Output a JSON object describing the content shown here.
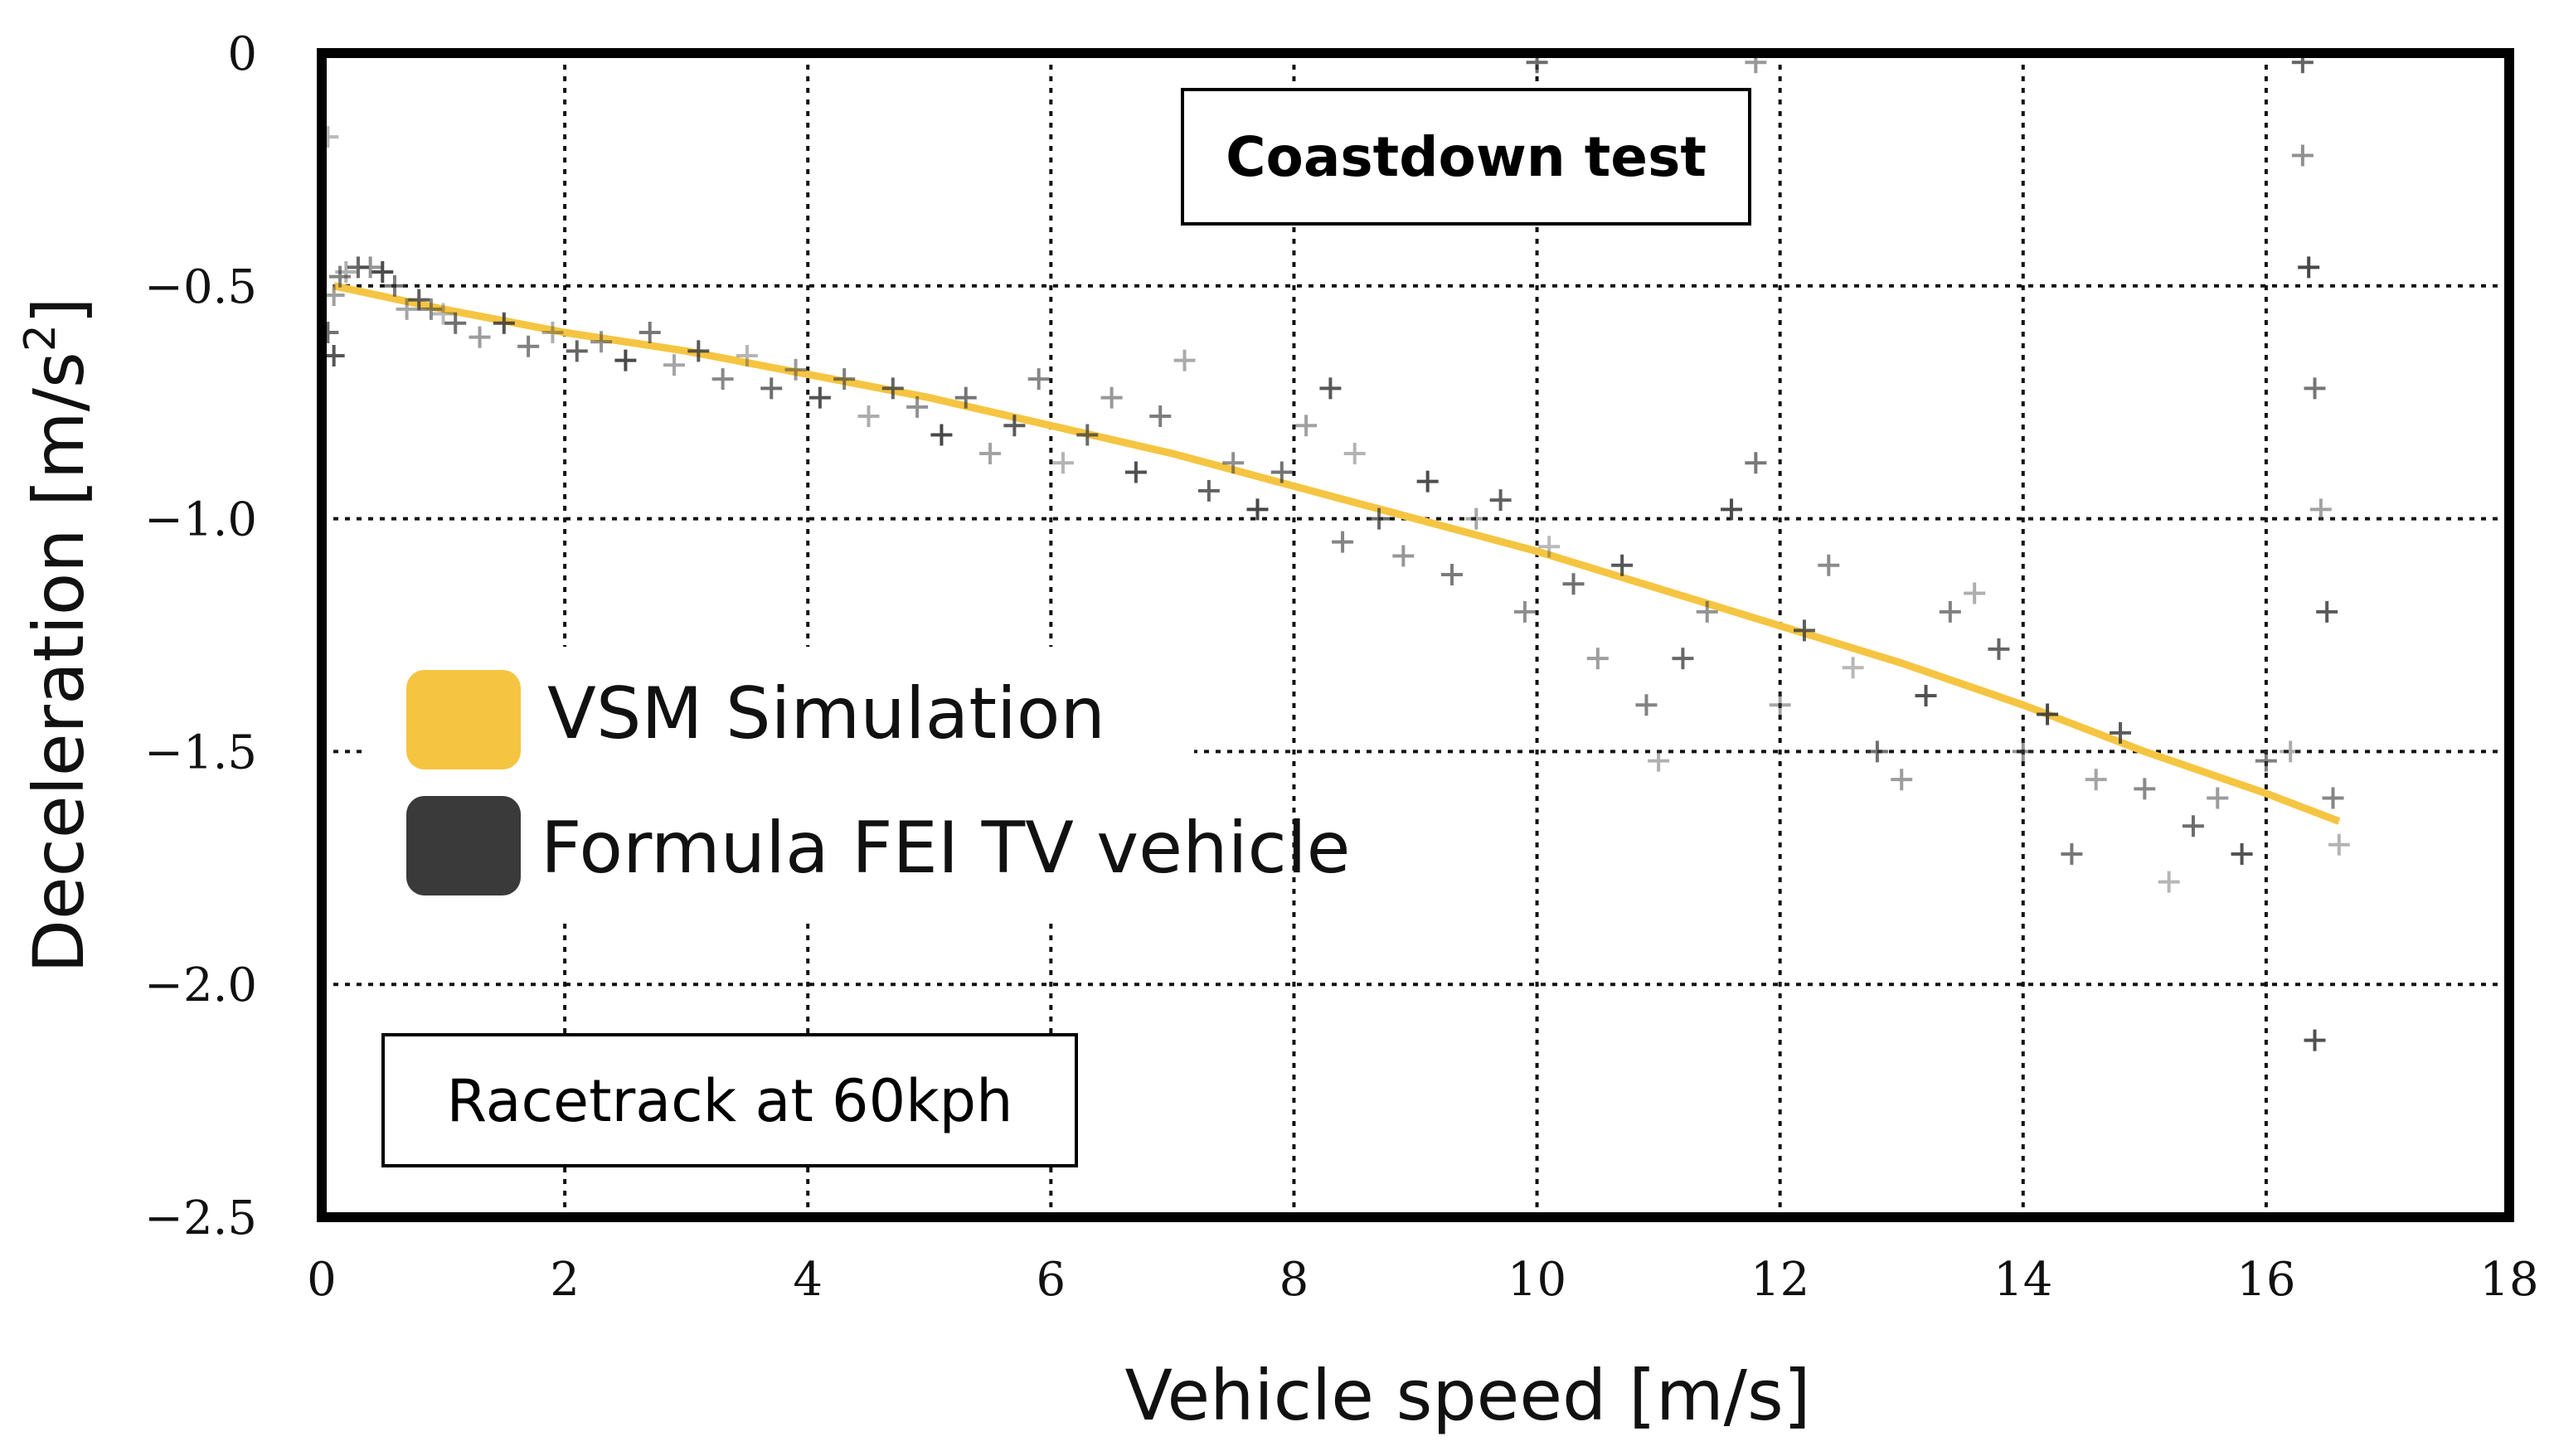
{
  "chart_data": {
    "type": "scatter",
    "title": "Coastdown test",
    "annotation": "Racetrack at 60kph",
    "xlabel": "Vehicle speed [m/s]",
    "ylabel_main": "Deceleration [m/s",
    "ylabel_sup": "2",
    "ylabel_end": "]",
    "xlim": [
      0,
      18
    ],
    "ylim": [
      -2.5,
      0
    ],
    "x_ticks": [
      0,
      2,
      4,
      6,
      8,
      10,
      12,
      14,
      16,
      18
    ],
    "x_tick_labels": [
      "0",
      "2",
      "4",
      "6",
      "8",
      "10",
      "12",
      "14",
      "16",
      "18"
    ],
    "y_ticks": [
      0,
      -0.5,
      -1.0,
      -1.5,
      -2.0,
      -2.5
    ],
    "y_tick_labels": [
      "0",
      "−0.5",
      "−1.0",
      "−1.5",
      "−2.0",
      "−2.5"
    ],
    "grid": true,
    "legend_position": "left",
    "series": [
      {
        "name": "VSM Simulation",
        "kind": "line",
        "color": "#f5c542",
        "x": [
          0.1,
          1,
          2,
          3,
          4,
          5,
          6,
          7,
          8,
          9,
          10,
          11,
          12,
          13,
          14,
          15,
          16,
          16.6
        ],
        "y": [
          -0.5,
          -0.55,
          -0.6,
          -0.64,
          -0.69,
          -0.74,
          -0.8,
          -0.86,
          -0.93,
          -1.0,
          -1.07,
          -1.15,
          -1.23,
          -1.31,
          -1.4,
          -1.5,
          -1.59,
          -1.65
        ]
      },
      {
        "name": "Formula FEI TV vehicle",
        "kind": "scatter",
        "color": "#3a3a3a",
        "x": [
          0.05,
          0.05,
          0.1,
          0.1,
          0.15,
          0.2,
          0.3,
          0.4,
          0.5,
          0.6,
          0.7,
          0.8,
          0.9,
          1.0,
          1.1,
          1.3,
          1.5,
          1.7,
          1.9,
          2.1,
          2.3,
          2.5,
          2.7,
          2.9,
          3.1,
          3.3,
          3.5,
          3.7,
          3.9,
          4.1,
          4.3,
          4.5,
          4.7,
          4.9,
          5.1,
          5.3,
          5.5,
          5.7,
          5.9,
          6.1,
          6.3,
          6.5,
          6.7,
          6.9,
          7.1,
          7.3,
          7.5,
          7.7,
          7.9,
          8.1,
          8.3,
          8.4,
          8.5,
          8.7,
          8.9,
          9.1,
          9.3,
          9.5,
          9.7,
          9.9,
          10.1,
          10.3,
          10.5,
          10.7,
          10.9,
          11.0,
          11.2,
          11.4,
          11.6,
          11.8,
          12.0,
          12.2,
          12.4,
          12.6,
          12.8,
          13.0,
          13.2,
          13.4,
          13.6,
          13.8,
          14.0,
          14.2,
          14.4,
          14.6,
          14.8,
          15.0,
          15.2,
          15.4,
          15.6,
          15.8,
          16.0,
          16.2,
          16.3,
          16.3,
          16.35,
          16.4,
          16.45,
          16.5,
          16.55,
          16.6,
          10.0,
          11.8,
          16.4
        ],
        "y": [
          -0.18,
          -0.6,
          -0.52,
          -0.65,
          -0.48,
          -0.47,
          -0.46,
          -0.46,
          -0.47,
          -0.5,
          -0.55,
          -0.53,
          -0.55,
          -0.56,
          -0.58,
          -0.61,
          -0.58,
          -0.63,
          -0.6,
          -0.64,
          -0.62,
          -0.66,
          -0.6,
          -0.67,
          -0.64,
          -0.7,
          -0.65,
          -0.72,
          -0.68,
          -0.74,
          -0.7,
          -0.78,
          -0.72,
          -0.76,
          -0.82,
          -0.74,
          -0.86,
          -0.8,
          -0.7,
          -0.88,
          -0.82,
          -0.74,
          -0.9,
          -0.78,
          -0.66,
          -0.94,
          -0.88,
          -0.98,
          -0.9,
          -0.8,
          -0.72,
          -1.05,
          -0.86,
          -1.0,
          -1.08,
          -0.92,
          -1.12,
          -1.0,
          -0.96,
          -1.2,
          -1.06,
          -1.14,
          -1.3,
          -1.1,
          -1.4,
          -1.52,
          -1.3,
          -1.2,
          -0.98,
          -0.88,
          -1.4,
          -1.24,
          -1.1,
          -1.32,
          -1.5,
          -1.56,
          -1.38,
          -1.2,
          -1.16,
          -1.28,
          -1.5,
          -1.42,
          -1.72,
          -1.56,
          -1.46,
          -1.58,
          -1.78,
          -1.66,
          -1.6,
          -1.72,
          -1.52,
          -1.5,
          -0.02,
          -0.22,
          -0.46,
          -0.72,
          -0.98,
          -1.2,
          -1.6,
          -1.7,
          -0.02,
          -0.02,
          -2.12
        ]
      }
    ]
  }
}
